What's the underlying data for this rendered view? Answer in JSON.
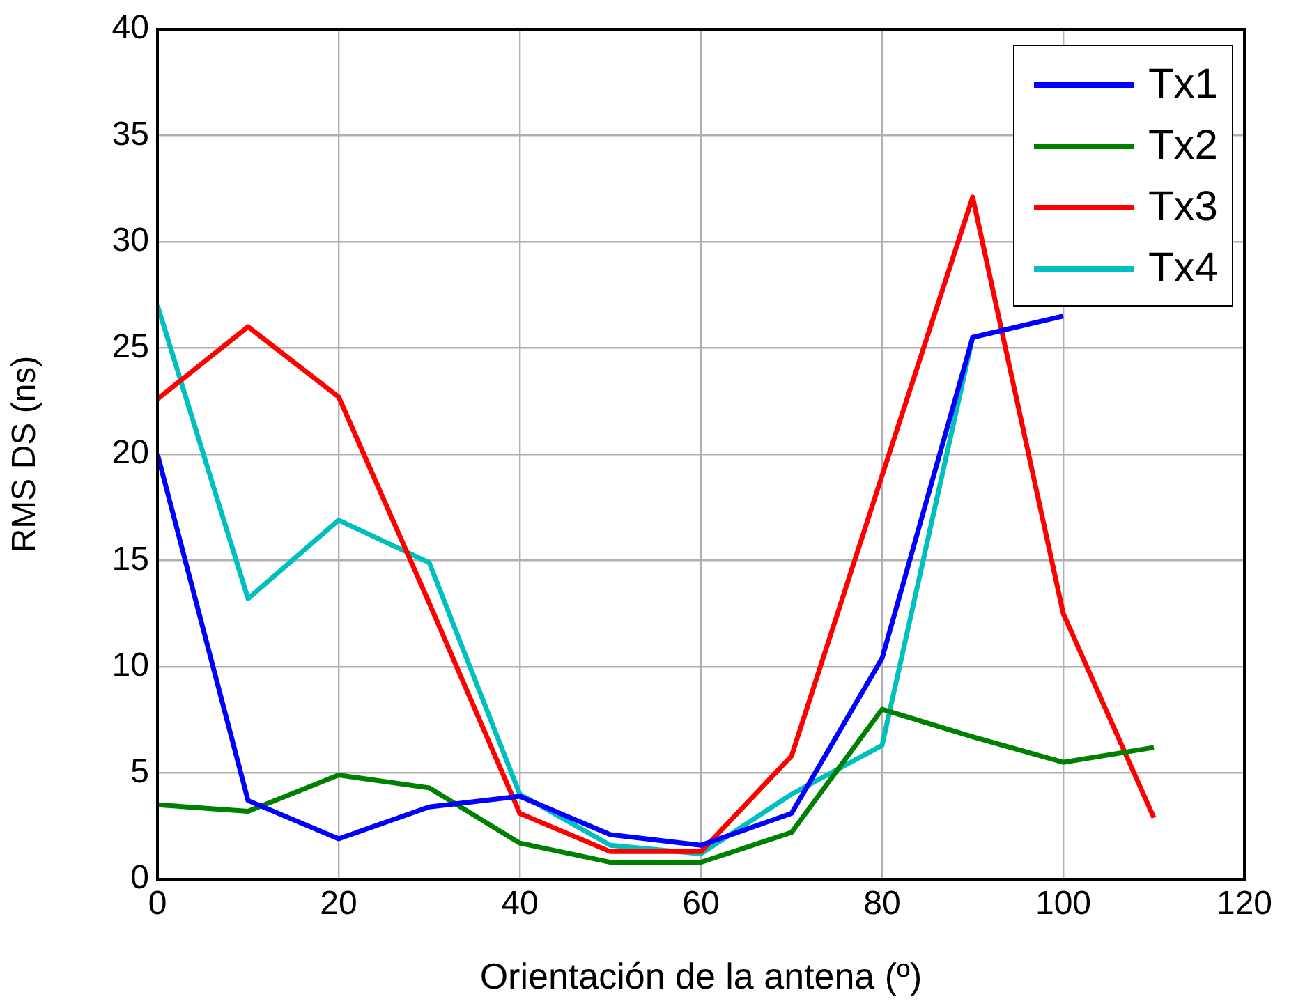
{
  "chart_data": {
    "type": "line",
    "xlabel": "Orientación de la antena (º)",
    "ylabel": "RMS DS (ns)",
    "x": [
      0,
      10,
      20,
      30,
      40,
      50,
      60,
      70,
      80,
      90,
      100,
      110
    ],
    "series": [
      {
        "name": "Tx1",
        "color": "#0000ff",
        "values": [
          20,
          3.7,
          1.9,
          3.4,
          3.9,
          2.1,
          1.6,
          3.1,
          10.4,
          25.5,
          26.5,
          null
        ]
      },
      {
        "name": "Tx2",
        "color": "#008000",
        "values": [
          3.5,
          3.2,
          4.9,
          4.3,
          1.7,
          0.8,
          0.8,
          2.2,
          8.0,
          6.7,
          5.5,
          6.2
        ]
      },
      {
        "name": "Tx3",
        "color": "#ff0000",
        "values": [
          22.6,
          26,
          22.7,
          13,
          3.1,
          1.3,
          1.3,
          5.8,
          19,
          32.1,
          12.5,
          2.9
        ]
      },
      {
        "name": "Tx4",
        "color": "#00bfbf",
        "values": [
          27,
          13.2,
          16.9,
          14.9,
          4.0,
          1.6,
          1.2,
          4.0,
          6.3,
          25.5,
          null,
          null
        ]
      }
    ],
    "xlim": [
      0,
      120
    ],
    "xticks": [
      0,
      20,
      40,
      60,
      80,
      100,
      120
    ],
    "ylim": [
      0,
      40
    ],
    "yticks": [
      0,
      5,
      10,
      15,
      20,
      25,
      30,
      35,
      40
    ],
    "grid": true,
    "legend": "top right",
    "marker": "none",
    "line_style": "solid"
  }
}
